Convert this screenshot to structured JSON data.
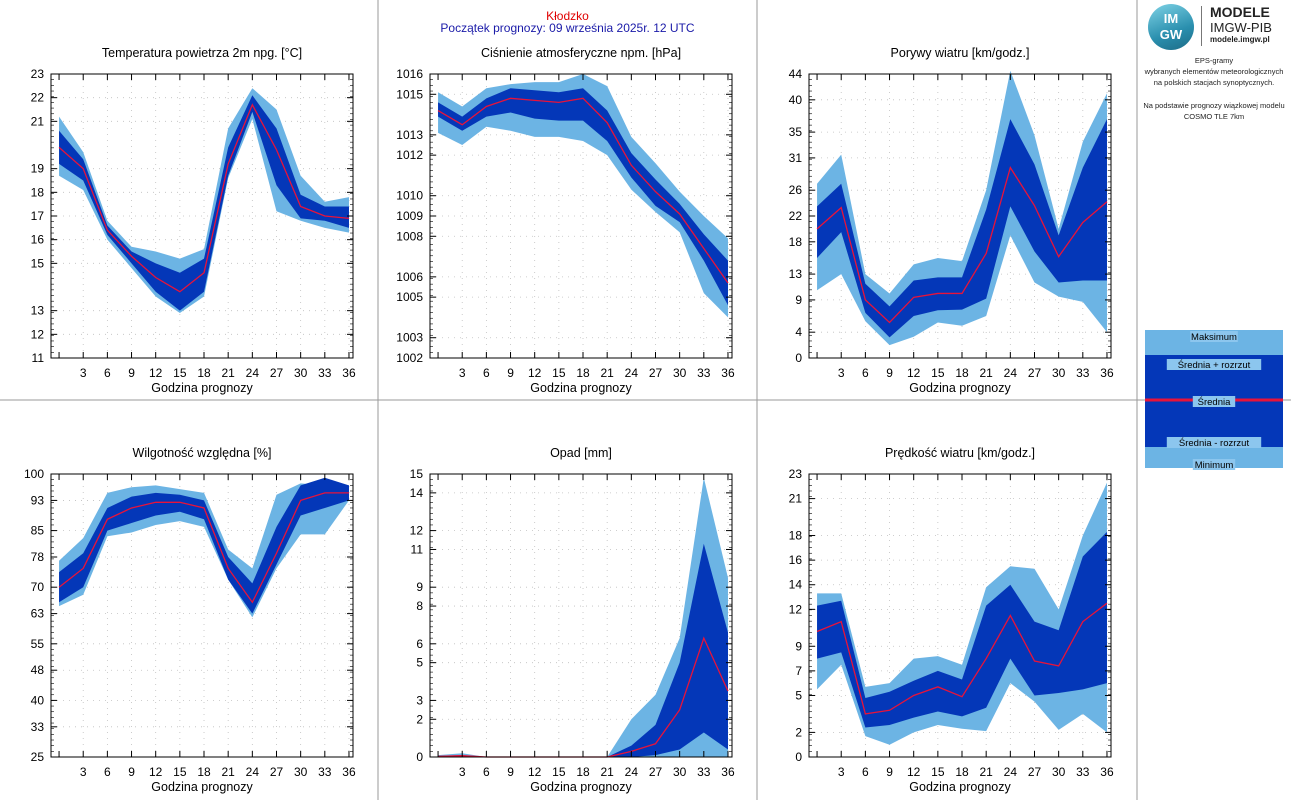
{
  "header": {
    "station": "Kłodzko",
    "forecast_start": "Początek prognozy: 09 września 2025r. 12 UTC"
  },
  "logo": {
    "mark_top": "IM",
    "mark_bottom": "GW",
    "title": "MODELE",
    "subtitle": "IMGW-PIB",
    "url": "modele.imgw.pl"
  },
  "side_info": {
    "line1": "EPS-gramy",
    "line2": "wybranych elementów meteorologicznych",
    "line3": "na polskich stacjach  synoptycznych.",
    "line4": "Na podstawie prognozy wiązkowej modelu",
    "line5": "COSMO TLE 7km"
  },
  "legend": {
    "max": "Maksimum",
    "mean_plus": "Średnia + rozrzut",
    "mean": "Średnia",
    "mean_minus": "Średnia - rozrzut",
    "min": "Minimum"
  },
  "colors": {
    "envelope": "#6cb4e4",
    "spread": "#0437b8",
    "mean": "#e8133a",
    "frame": "#000000",
    "grid": "#bfbfbf",
    "divider": "#9a9a9a"
  },
  "chart_data": [
    {
      "type": "area",
      "title": "Temperatura powietrza 2m npg. [°C]",
      "xlabel": "Godzina prognozy",
      "x": [
        0,
        3,
        6,
        9,
        12,
        15,
        18,
        21,
        24,
        27,
        30,
        33,
        36
      ],
      "ylim": [
        11,
        23
      ],
      "yticks": [
        11,
        12,
        13,
        15,
        16,
        17,
        18,
        19,
        21,
        22,
        23
      ],
      "ytick_labels": [
        "11",
        "12",
        "13",
        "15",
        "16",
        "17",
        "18",
        "19",
        "21",
        "22",
        "23"
      ],
      "max": [
        21.2,
        19.7,
        16.8,
        15.7,
        15.5,
        15.2,
        15.6,
        20.7,
        22.4,
        21.5,
        18.7,
        17.6,
        17.8
      ],
      "mean_plus": [
        20.6,
        19.4,
        16.6,
        15.5,
        15.0,
        14.6,
        15.2,
        19.9,
        22.1,
        20.7,
        17.9,
        17.4,
        17.4
      ],
      "mean": [
        19.9,
        19.0,
        16.4,
        15.3,
        14.4,
        13.8,
        14.6,
        19.2,
        21.7,
        19.8,
        17.4,
        17.0,
        16.9
      ],
      "mean_minus": [
        19.2,
        18.5,
        16.2,
        15.0,
        13.8,
        13.0,
        13.8,
        18.7,
        21.4,
        18.3,
        16.9,
        16.8,
        16.5
      ],
      "min": [
        18.7,
        18.1,
        16.0,
        14.8,
        13.6,
        12.9,
        13.6,
        18.6,
        21.1,
        17.2,
        16.8,
        16.5,
        16.3
      ]
    },
    {
      "type": "area",
      "title": "Ciśnienie atmosferyczne npm. [hPa]",
      "xlabel": "Godzina prognozy",
      "x": [
        0,
        3,
        6,
        9,
        12,
        15,
        18,
        21,
        24,
        27,
        30,
        33,
        36
      ],
      "ylim": [
        1002,
        1016
      ],
      "yticks": [
        1002,
        1003,
        1005,
        1006,
        1008,
        1009,
        1010,
        1012,
        1013,
        1015,
        1016
      ],
      "ytick_labels": [
        "1002",
        "1003",
        "1005",
        "1006",
        "1008",
        "1009",
        "1010",
        "1012",
        "1013",
        "1015",
        "1016"
      ],
      "max": [
        1015.1,
        1014.4,
        1015.3,
        1015.5,
        1015.6,
        1015.6,
        1016.0,
        1015.4,
        1012.9,
        1011.6,
        1010.2,
        1009.0,
        1007.9
      ],
      "mean_plus": [
        1014.6,
        1013.9,
        1014.8,
        1015.3,
        1015.2,
        1015.1,
        1015.3,
        1014.2,
        1012.1,
        1010.8,
        1009.6,
        1008.1,
        1006.8
      ],
      "mean": [
        1014.2,
        1013.5,
        1014.4,
        1014.8,
        1014.7,
        1014.6,
        1014.8,
        1013.6,
        1011.5,
        1010.2,
        1009.1,
        1007.4,
        1005.7
      ],
      "mean_minus": [
        1013.9,
        1013.2,
        1013.9,
        1014.1,
        1013.8,
        1013.7,
        1013.7,
        1012.7,
        1010.9,
        1009.5,
        1008.7,
        1006.8,
        1004.6
      ],
      "min": [
        1013.1,
        1012.5,
        1013.4,
        1013.2,
        1012.9,
        1012.9,
        1012.7,
        1012.0,
        1010.3,
        1009.2,
        1008.2,
        1005.2,
        1004.0
      ]
    },
    {
      "type": "area",
      "title": "Porywy wiatru [km/godz.]",
      "xlabel": "Godzina prognozy",
      "x": [
        0,
        3,
        6,
        9,
        12,
        15,
        18,
        21,
        24,
        27,
        30,
        33,
        36
      ],
      "ylim": [
        0,
        44
      ],
      "yticks": [
        0,
        4,
        9,
        13,
        18,
        22,
        26,
        31,
        35,
        40,
        44
      ],
      "ytick_labels": [
        "0",
        "4",
        "9",
        "13",
        "18",
        "22",
        "26",
        "31",
        "35",
        "40",
        "44"
      ],
      "max": [
        27,
        31.5,
        13,
        10,
        14.5,
        15.5,
        15,
        26,
        44.5,
        34.5,
        20,
        33.5,
        41
      ],
      "mean_plus": [
        23.5,
        27,
        11.5,
        8,
        12,
        12.5,
        12.5,
        23,
        37,
        30,
        19,
        29.5,
        37
      ],
      "mean": [
        20,
        23.3,
        9,
        5.5,
        9.4,
        10,
        10,
        16.2,
        29.5,
        23.6,
        15.7,
        21,
        24.2
      ],
      "mean_minus": [
        15.5,
        19.5,
        7,
        3.2,
        6.5,
        7.4,
        7.5,
        9.2,
        23.5,
        16.5,
        11.7,
        12,
        12
      ],
      "min": [
        10.5,
        13,
        5.7,
        2,
        3.3,
        5.5,
        5,
        6.5,
        19,
        11.7,
        9.5,
        8.7,
        4
      ]
    },
    {
      "type": "area",
      "title": "Wilgotność względna [%]",
      "xlabel": "Godzina prognozy",
      "x": [
        0,
        3,
        6,
        9,
        12,
        15,
        18,
        21,
        24,
        27,
        30,
        33,
        36
      ],
      "ylim": [
        25,
        100
      ],
      "yticks": [
        25,
        33,
        40,
        48,
        55,
        63,
        70,
        78,
        85,
        93,
        100
      ],
      "ytick_labels": [
        "25",
        "33",
        "40",
        "48",
        "55",
        "63",
        "70",
        "78",
        "85",
        "93",
        "100"
      ],
      "max": [
        77,
        83,
        95,
        96.5,
        97,
        96,
        95,
        80,
        75,
        94.5,
        97.5,
        97,
        97
      ],
      "mean_plus": [
        74,
        79,
        91,
        94,
        95,
        94.5,
        93,
        78,
        71,
        86,
        97,
        99,
        97
      ],
      "mean": [
        70,
        75,
        88,
        91,
        92.5,
        92.5,
        91,
        75,
        66,
        79,
        93,
        95,
        95
      ],
      "mean_minus": [
        66,
        70,
        85,
        87,
        89,
        90,
        88,
        72,
        63,
        76,
        89,
        91,
        93
      ],
      "min": [
        65,
        68,
        83.5,
        84.5,
        86.5,
        87.5,
        86,
        72,
        62,
        75,
        84,
        84,
        93
      ]
    },
    {
      "type": "area",
      "title": "Opad [mm]",
      "xlabel": "Godzina prognozy",
      "x": [
        0,
        3,
        6,
        9,
        12,
        15,
        18,
        21,
        24,
        27,
        30,
        33,
        36
      ],
      "ylim": [
        0,
        15
      ],
      "yticks": [
        0,
        2,
        3,
        5,
        6,
        8,
        9,
        11,
        12,
        14,
        15
      ],
      "ytick_labels": [
        "0",
        "2",
        "3",
        "5",
        "6",
        "8",
        "9",
        "11",
        "12",
        "14",
        "15"
      ],
      "max": [
        0.1,
        0.2,
        0,
        0,
        0,
        0,
        0,
        0,
        2.0,
        3.3,
        6.3,
        14.8,
        9.5
      ],
      "mean_plus": [
        0.05,
        0.1,
        0,
        0,
        0,
        0,
        0,
        0,
        0.6,
        1.7,
        5.0,
        11.3,
        6.6
      ],
      "mean": [
        0.03,
        0.07,
        0,
        0,
        0,
        0,
        0,
        0,
        0.3,
        0.7,
        2.5,
        6.3,
        3.5
      ],
      "mean_minus": [
        0,
        0,
        0,
        0,
        0,
        0,
        0,
        0,
        0,
        0.1,
        0.4,
        1.3,
        0.4
      ],
      "min": [
        0,
        0,
        0,
        0,
        0,
        0,
        0,
        0,
        0,
        0,
        0,
        0,
        0
      ]
    },
    {
      "type": "area",
      "title": "Prędkość wiatru [km/godz.]",
      "xlabel": "Godzina prognozy",
      "x": [
        0,
        3,
        6,
        9,
        12,
        15,
        18,
        21,
        24,
        27,
        30,
        33,
        36
      ],
      "ylim": [
        0,
        23
      ],
      "yticks": [
        0,
        2,
        5,
        7,
        9,
        12,
        14,
        16,
        18,
        21,
        23
      ],
      "ytick_labels": [
        "0",
        "2",
        "5",
        "7",
        "9",
        "12",
        "14",
        "16",
        "18",
        "21",
        "23"
      ],
      "max": [
        13.3,
        13.3,
        5.7,
        6,
        8,
        8.2,
        7.5,
        13.8,
        15.5,
        15.3,
        12,
        18,
        22.3
      ],
      "mean_plus": [
        12.3,
        12.7,
        4.8,
        5.3,
        6.2,
        7,
        6.3,
        12.3,
        14,
        11,
        10.3,
        16.3,
        18.3
      ],
      "mean": [
        10.2,
        11,
        3.5,
        3.8,
        5,
        5.7,
        4.9,
        8,
        11.5,
        7.8,
        7.4,
        11,
        12.5
      ],
      "mean_minus": [
        8,
        8.5,
        2.4,
        2.6,
        3.2,
        3.7,
        3.3,
        4,
        8,
        5,
        5.2,
        5.5,
        6
      ],
      "min": [
        5.5,
        7.5,
        1.7,
        1,
        2,
        2.6,
        2.3,
        2.1,
        6,
        4.5,
        2.2,
        3.5,
        2
      ]
    }
  ]
}
